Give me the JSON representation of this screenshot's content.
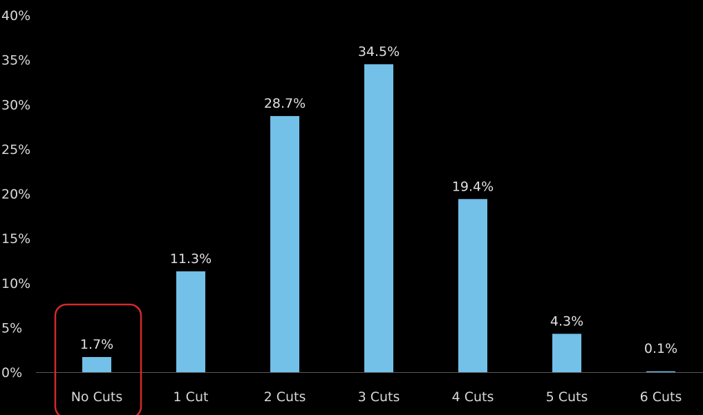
{
  "chart_data": {
    "type": "bar",
    "title": "",
    "xlabel": "",
    "ylabel": "",
    "categories": [
      "No Cuts",
      "1 Cut",
      "2 Cuts",
      "3 Cuts",
      "4 Cuts",
      "5 Cuts",
      "6 Cuts"
    ],
    "values": [
      1.7,
      11.3,
      28.7,
      34.5,
      19.4,
      4.3,
      0.1
    ],
    "data_labels": [
      "1.7%",
      "11.3%",
      "28.7%",
      "34.5%",
      "19.4%",
      "4.3%",
      "0.1%"
    ],
    "ylim": [
      0,
      40
    ],
    "yticks": [
      0,
      5,
      10,
      15,
      20,
      25,
      30,
      35,
      40
    ],
    "ytick_labels": [
      "0%",
      "5%",
      "10%",
      "15%",
      "20%",
      "25%",
      "30%",
      "35%",
      "40%"
    ],
    "grid": false,
    "legend": "none",
    "highlighted_category": "No Cuts"
  },
  "colors": {
    "background": "#000000",
    "bar": "#73c0e8",
    "text": "#d9d9d9",
    "highlight_box": "#d42a2a",
    "axis_line": "#595959"
  }
}
